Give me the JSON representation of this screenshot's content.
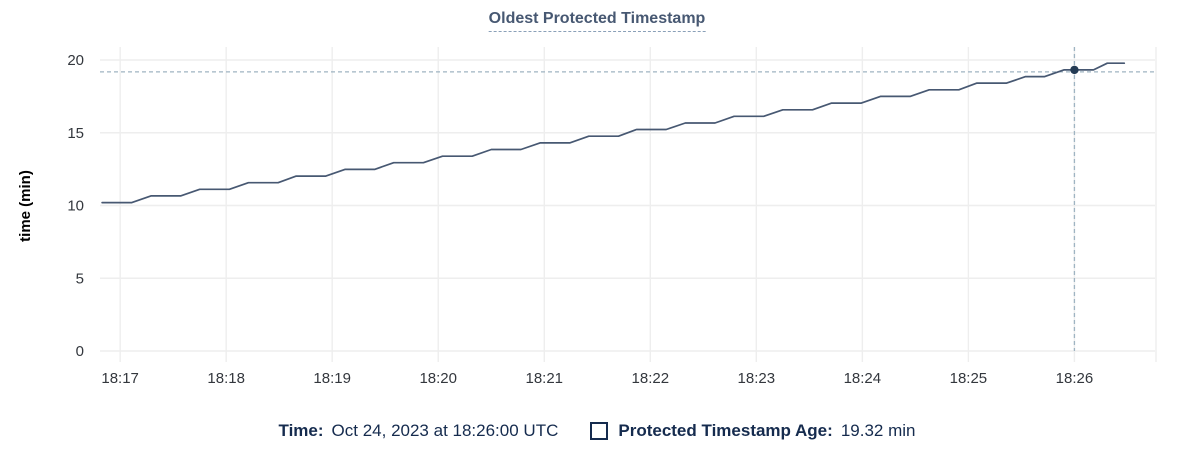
{
  "title": "Oldest Protected Timestamp",
  "legend": {
    "time_label": "Time:",
    "time_value": "Oct 24, 2023 at 18:26:00 UTC",
    "series_label": "Protected Timestamp Age:",
    "series_value": "19.32 min"
  },
  "colors": {
    "title": "#475872",
    "line": "#475872",
    "dot": "#253c55",
    "crosshair": "#9fb4c2",
    "grid": "#eeeeee",
    "tick_text": "#33373d",
    "axis_label_text": "#000000",
    "legend_text": "#152b4e"
  },
  "chart_data": {
    "type": "line",
    "title": "Oldest Protected Timestamp",
    "xlabel": "",
    "ylabel": "time (min)",
    "x_tick_labels": [
      "18:17",
      "18:18",
      "18:19",
      "18:20",
      "18:21",
      "18:22",
      "18:23",
      "18:24",
      "18:25",
      "18:26"
    ],
    "y_ticks": [
      0,
      5,
      10,
      15,
      20
    ],
    "ylim": [
      0,
      20
    ],
    "x_domain_minutes_after_first_tick": [
      -0.19,
      9.76
    ],
    "grid": true,
    "legend_position": "bottom",
    "series": [
      {
        "name": "Protected Timestamp Age",
        "unit": "min",
        "points_minutes_value": [
          [
            -0.17,
            10.2
          ],
          [
            0.11,
            10.2
          ],
          [
            0.29,
            10.66
          ],
          [
            0.57,
            10.66
          ],
          [
            0.75,
            11.11
          ],
          [
            1.03,
            11.11
          ],
          [
            1.21,
            11.57
          ],
          [
            1.49,
            11.57
          ],
          [
            1.66,
            12.02
          ],
          [
            1.94,
            12.02
          ],
          [
            2.12,
            12.48
          ],
          [
            2.4,
            12.48
          ],
          [
            2.58,
            12.94
          ],
          [
            2.86,
            12.94
          ],
          [
            3.04,
            13.39
          ],
          [
            3.32,
            13.39
          ],
          [
            3.5,
            13.85
          ],
          [
            3.78,
            13.85
          ],
          [
            3.96,
            14.3
          ],
          [
            4.24,
            14.3
          ],
          [
            4.42,
            14.76
          ],
          [
            4.7,
            14.76
          ],
          [
            4.87,
            15.22
          ],
          [
            5.15,
            15.22
          ],
          [
            5.33,
            15.67
          ],
          [
            5.61,
            15.67
          ],
          [
            5.79,
            16.13
          ],
          [
            6.07,
            16.13
          ],
          [
            6.25,
            16.58
          ],
          [
            6.53,
            16.58
          ],
          [
            6.71,
            17.04
          ],
          [
            6.99,
            17.04
          ],
          [
            7.17,
            17.5
          ],
          [
            7.45,
            17.5
          ],
          [
            7.63,
            17.95
          ],
          [
            7.91,
            17.95
          ],
          [
            8.08,
            18.41
          ],
          [
            8.36,
            18.41
          ],
          [
            8.54,
            18.86
          ],
          [
            8.72,
            18.86
          ],
          [
            8.9,
            19.32
          ],
          [
            9.18,
            19.32
          ],
          [
            9.31,
            19.78
          ],
          [
            9.47,
            19.78
          ]
        ]
      }
    ],
    "highlight": {
      "time_label": "Oct 24, 2023 at 18:26:00 UTC",
      "x_minutes_after_first_tick": 9.0,
      "value_min": 19.32
    }
  }
}
